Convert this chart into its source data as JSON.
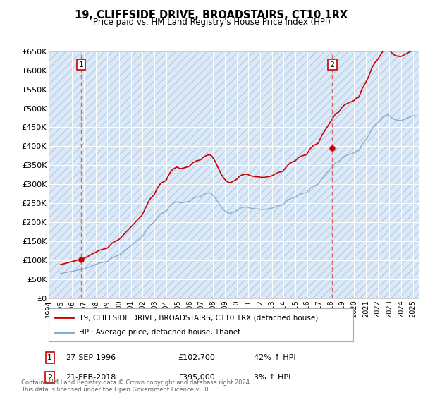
{
  "title": "19, CLIFFSIDE DRIVE, BROADSTAIRS, CT10 1RX",
  "subtitle": "Price paid vs. HM Land Registry's House Price Index (HPI)",
  "property_label": "19, CLIFFSIDE DRIVE, BROADSTAIRS, CT10 1RX (detached house)",
  "hpi_label": "HPI: Average price, detached house, Thanet",
  "footnote": "Contains HM Land Registry data © Crown copyright and database right 2024.\nThis data is licensed under the Open Government Licence v3.0.",
  "sale1_date": "27-SEP-1996",
  "sale1_price": 102700,
  "sale1_pct": "42% ↑ HPI",
  "sale2_date": "21-FEB-2018",
  "sale2_price": 395000,
  "sale2_pct": "3% ↑ HPI",
  "sale1_x": 1996.75,
  "sale2_x": 2018.13,
  "bg_color": "#dce9f8",
  "hatch_color": "#b8cfe0",
  "grid_color": "#ffffff",
  "property_color": "#cc0000",
  "hpi_color": "#7aaace",
  "dashed_line_color": "#e06060"
}
